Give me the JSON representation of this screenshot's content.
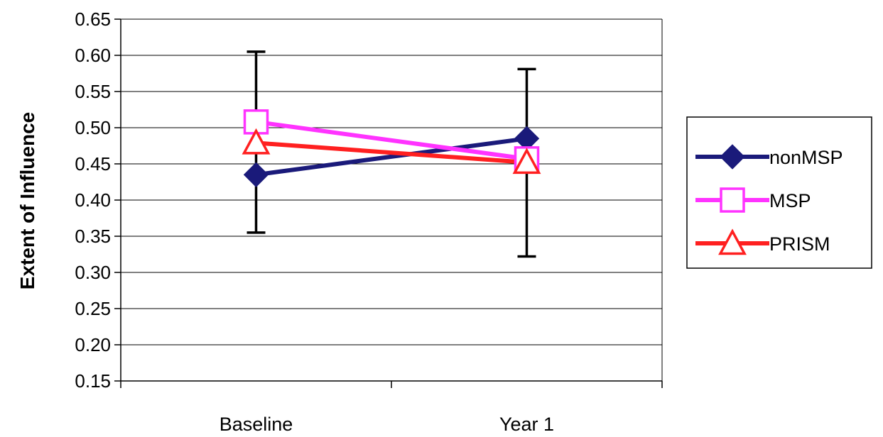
{
  "chart_data": {
    "type": "line",
    "categories": [
      "Baseline",
      "Year 1"
    ],
    "ylabel": "Extent of Influence",
    "xlabel": "",
    "ylim": [
      0.15,
      0.65
    ],
    "yticks": [
      "0.15",
      "0.20",
      "0.25",
      "0.30",
      "0.35",
      "0.40",
      "0.45",
      "0.50",
      "0.55",
      "0.60",
      "0.65"
    ],
    "grid": true,
    "legend_position": "right",
    "series": [
      {
        "name": "nonMSP",
        "values": [
          0.435,
          0.485
        ],
        "color": "#1a1a7a",
        "marker": "diamond"
      },
      {
        "name": "MSP",
        "values": [
          0.508,
          0.457
        ],
        "color": "#ff33ff",
        "marker": "square"
      },
      {
        "name": "PRISM",
        "values": [
          0.479,
          0.452
        ],
        "color": "#ff2020",
        "marker": "triangle"
      }
    ],
    "error_bars": [
      {
        "category": "Baseline",
        "low": 0.355,
        "high": 0.605
      },
      {
        "category": "Year 1",
        "low": 0.322,
        "high": 0.581
      }
    ]
  }
}
